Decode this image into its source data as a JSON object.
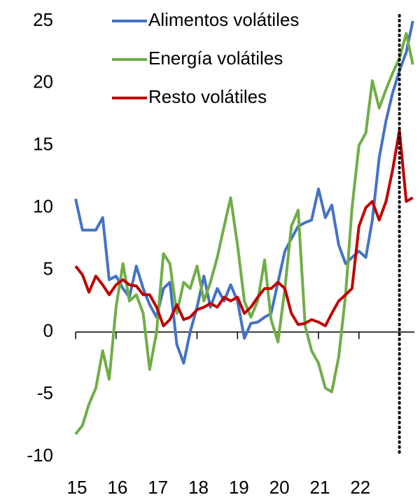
{
  "chart_data": {
    "type": "line",
    "x": [
      15,
      15.17,
      15.33,
      15.5,
      15.67,
      15.83,
      16,
      16.17,
      16.33,
      16.5,
      16.67,
      16.83,
      17,
      17.17,
      17.33,
      17.5,
      17.67,
      17.83,
      18,
      18.17,
      18.33,
      18.5,
      18.67,
      18.83,
      19,
      19.17,
      19.33,
      19.5,
      19.67,
      19.83,
      20,
      20.17,
      20.33,
      20.5,
      20.67,
      20.83,
      21,
      21.17,
      21.33,
      21.5,
      21.67,
      21.83,
      22,
      22.17,
      22.33,
      22.5,
      22.67,
      22.83,
      23,
      23.17,
      23.33
    ],
    "series": [
      {
        "name": "Alimentos volátiles",
        "color": "#4472c4",
        "values": [
          10.7,
          8.2,
          8.2,
          8.2,
          9.2,
          4.2,
          4.5,
          3.5,
          2.8,
          5.3,
          3.5,
          2.2,
          1.2,
          3.5,
          4.0,
          -1.0,
          -2.5,
          0.0,
          2.0,
          4.5,
          2.0,
          3.5,
          2.5,
          3.8,
          2.5,
          -0.5,
          0.7,
          0.8,
          1.2,
          1.5,
          4.0,
          6.5,
          7.5,
          8.5,
          8.8,
          9.0,
          11.5,
          9.2,
          10.2,
          7.0,
          5.5,
          6.0,
          6.5,
          6.0,
          9.0,
          14.0,
          17.0,
          19.2,
          21.0,
          22.5,
          25.0
        ]
      },
      {
        "name": "Energía volátiles",
        "color": "#70ad47",
        "values": [
          -8.2,
          -7.5,
          -5.8,
          -4.5,
          -1.5,
          -3.8,
          2.0,
          5.5,
          2.5,
          3.0,
          1.5,
          -3.0,
          0.0,
          6.3,
          5.5,
          1.5,
          4.0,
          3.5,
          5.3,
          2.5,
          4.0,
          6.0,
          8.5,
          10.8,
          7.0,
          2.5,
          1.2,
          2.5,
          5.8,
          1.0,
          -0.8,
          3.5,
          8.5,
          9.8,
          0.5,
          -1.5,
          -2.5,
          -4.5,
          -4.8,
          -2.0,
          3.0,
          10.0,
          15.0,
          16.0,
          20.2,
          18.0,
          19.5,
          20.8,
          22.0,
          24.0,
          21.5
        ]
      },
      {
        "name": "Resto volátiles",
        "color": "#c00000",
        "values": [
          5.3,
          4.6,
          3.2,
          4.5,
          3.8,
          3.0,
          3.8,
          4.2,
          3.8,
          3.7,
          3.0,
          3.0,
          2.0,
          0.5,
          1.0,
          2.2,
          1.0,
          1.2,
          1.8,
          2.0,
          2.3,
          2.0,
          2.8,
          2.5,
          2.8,
          1.5,
          2.0,
          2.8,
          3.5,
          3.5,
          4.0,
          3.5,
          1.5,
          0.6,
          0.7,
          1.0,
          0.8,
          0.5,
          1.5,
          2.5,
          3.0,
          3.5,
          8.5,
          10.0,
          10.5,
          9.0,
          10.5,
          13.0,
          16.2,
          10.5,
          10.8
        ]
      }
    ],
    "xlim": [
      15,
      23.37
    ],
    "xticks": [
      15,
      16,
      17,
      18,
      19,
      20,
      21,
      22
    ],
    "ylim": [
      -10,
      25
    ],
    "yticks": [
      -10,
      -5,
      0,
      5,
      10,
      15,
      20,
      25
    ],
    "vlines": [
      23
    ]
  }
}
